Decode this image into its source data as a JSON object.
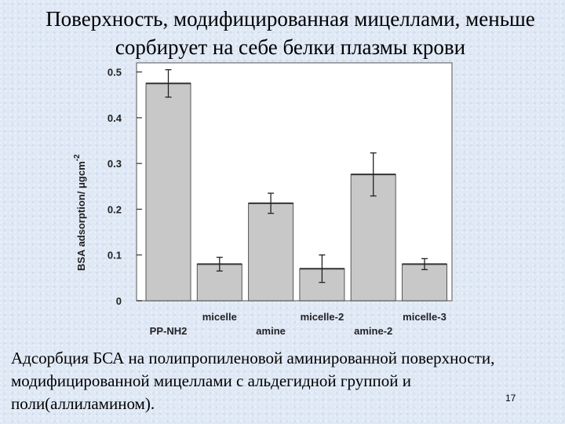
{
  "slide": {
    "title_line1": "Поверхность, модифицированная мицеллами, меньше",
    "title_line2": "сорбирует на себе белки плазмы крови",
    "caption": "Адсорбция БСА на полипропиленовой аминированной поверхности, модифицированной мицеллами с альдегидной группой и поли(аллиламином).",
    "page_number": "17"
  },
  "chart_data": {
    "type": "bar",
    "categories": [
      "PP-NH2",
      "micelle",
      "amine",
      "micelle-2",
      "amine-2",
      "micelle-3"
    ],
    "category_label_row": [
      "low",
      "high",
      "low",
      "high",
      "low",
      "high"
    ],
    "values": [
      0.475,
      0.08,
      0.213,
      0.07,
      0.276,
      0.08
    ],
    "errors": [
      0.03,
      0.015,
      0.022,
      0.03,
      0.047,
      0.012
    ],
    "ylabel": "BSA adsorption/ μgcm",
    "ylabel_superscript": "-2",
    "ylim": [
      0,
      0.52
    ],
    "yticks": [
      0,
      0.1,
      0.2,
      0.3,
      0.4,
      0.5
    ],
    "ytick_labels": [
      "0",
      "0.1",
      "0.2",
      "0.3",
      "0.4",
      "0.5"
    ],
    "grid": false,
    "bar_color": "#c8c8c8"
  }
}
